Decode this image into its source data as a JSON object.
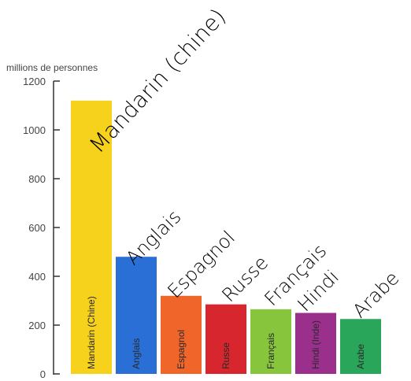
{
  "chart_data": {
    "type": "bar",
    "ylabel": "millions de personnes",
    "ylim": [
      0,
      1200
    ],
    "yticks": [
      "0",
      "200",
      "400",
      "600",
      "800",
      "1000",
      "1200"
    ],
    "grid": false,
    "categories": [
      "Mandarin (Chine)",
      "Anglais",
      "Espagnol",
      "Russe",
      "Français",
      "Hindi (Inde)",
      "Arabe"
    ],
    "values": [
      1120,
      480,
      320,
      285,
      265,
      250,
      225
    ],
    "colors": [
      "#f6d21c",
      "#2a6fd6",
      "#f0652a",
      "#d8262e",
      "#86c53c",
      "#9a2f8c",
      "#2aa65a"
    ],
    "annotations": [
      "Mandarin (chine)",
      "Anglais",
      "Espagnol",
      "Russe",
      "Français",
      "Hindi",
      "Arabe"
    ]
  }
}
